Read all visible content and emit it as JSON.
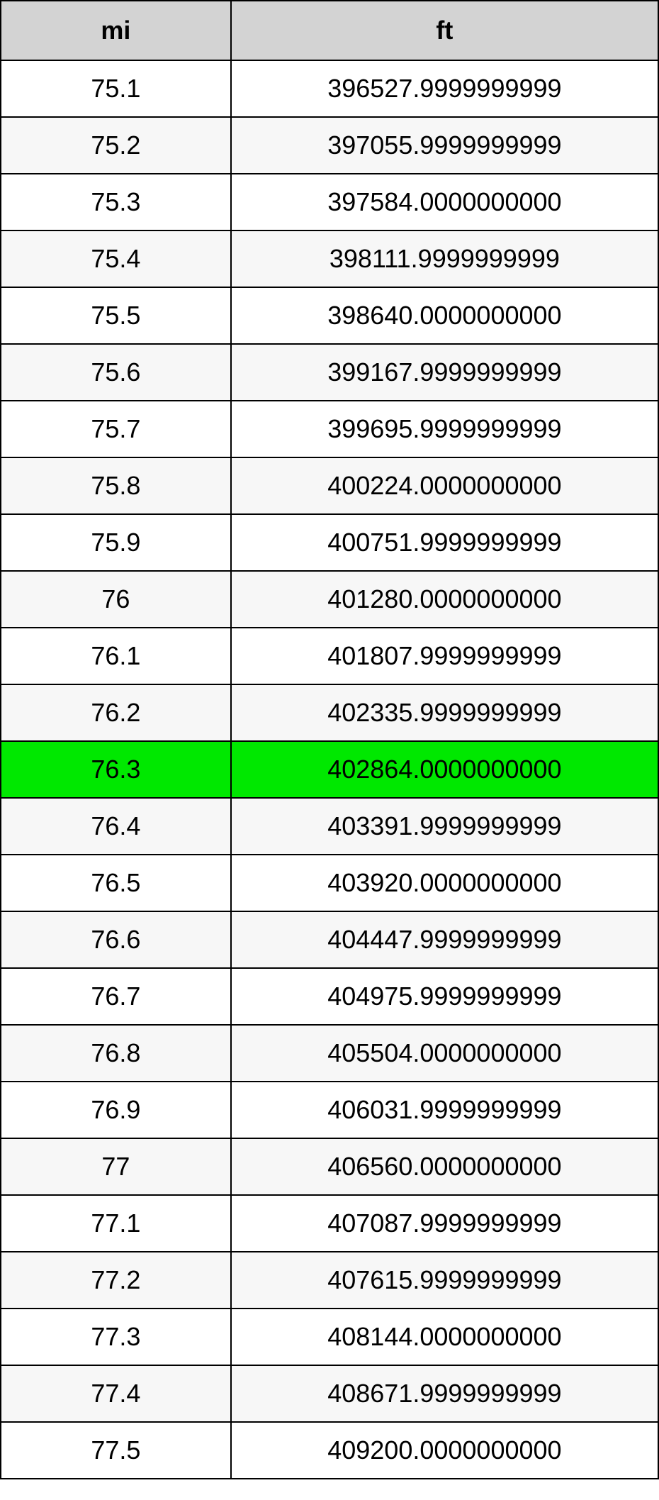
{
  "table": {
    "type": "table",
    "columns": [
      {
        "label": "mi",
        "width_pct": 35,
        "align": "center"
      },
      {
        "label": "ft",
        "width_pct": 65,
        "align": "center"
      }
    ],
    "header_bg_color": "#d3d3d3",
    "header_font_weight": "bold",
    "border_color": "#000000",
    "border_width": 2,
    "font_size": 36,
    "row_bg_even": "#f7f7f7",
    "row_bg_odd": "#ffffff",
    "highlight_bg": "#00e800",
    "highlighted_row_index": 12,
    "rows": [
      {
        "mi": "75.1",
        "ft": "396527.9999999999"
      },
      {
        "mi": "75.2",
        "ft": "397055.9999999999"
      },
      {
        "mi": "75.3",
        "ft": "397584.0000000000"
      },
      {
        "mi": "75.4",
        "ft": "398111.9999999999"
      },
      {
        "mi": "75.5",
        "ft": "398640.0000000000"
      },
      {
        "mi": "75.6",
        "ft": "399167.9999999999"
      },
      {
        "mi": "75.7",
        "ft": "399695.9999999999"
      },
      {
        "mi": "75.8",
        "ft": "400224.0000000000"
      },
      {
        "mi": "75.9",
        "ft": "400751.9999999999"
      },
      {
        "mi": "76",
        "ft": "401280.0000000000"
      },
      {
        "mi": "76.1",
        "ft": "401807.9999999999"
      },
      {
        "mi": "76.2",
        "ft": "402335.9999999999"
      },
      {
        "mi": "76.3",
        "ft": "402864.0000000000"
      },
      {
        "mi": "76.4",
        "ft": "403391.9999999999"
      },
      {
        "mi": "76.5",
        "ft": "403920.0000000000"
      },
      {
        "mi": "76.6",
        "ft": "404447.9999999999"
      },
      {
        "mi": "76.7",
        "ft": "404975.9999999999"
      },
      {
        "mi": "76.8",
        "ft": "405504.0000000000"
      },
      {
        "mi": "76.9",
        "ft": "406031.9999999999"
      },
      {
        "mi": "77",
        "ft": "406560.0000000000"
      },
      {
        "mi": "77.1",
        "ft": "407087.9999999999"
      },
      {
        "mi": "77.2",
        "ft": "407615.9999999999"
      },
      {
        "mi": "77.3",
        "ft": "408144.0000000000"
      },
      {
        "mi": "77.4",
        "ft": "408671.9999999999"
      },
      {
        "mi": "77.5",
        "ft": "409200.0000000000"
      }
    ]
  }
}
